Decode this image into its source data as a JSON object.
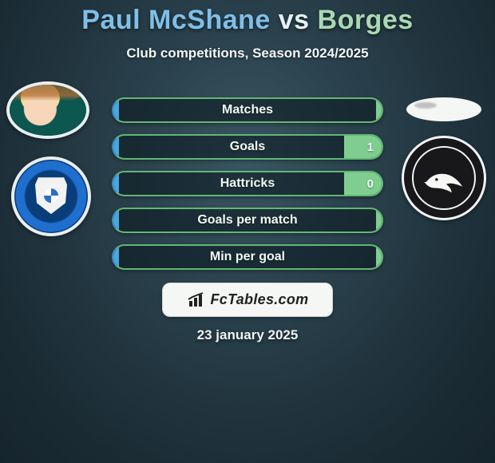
{
  "title": {
    "player1": "Paul McShane",
    "vs": "vs",
    "player2": "Borges",
    "p1_color": "#7fbfe8",
    "vs_color": "#e7f0f4",
    "p2_color": "#a9d9b3"
  },
  "subtitle": "Club competitions, Season 2024/2025",
  "colors": {
    "left": "#4aa6dd",
    "left_border": "#3a8ec0",
    "left_text": "#e6f5ff",
    "right": "#7fce8f",
    "right_border": "#61b873",
    "right_text": "#f1fbf3",
    "empty_bg": "rgba(10,22,30,0.55)"
  },
  "stats": [
    {
      "label": "Matches",
      "left_val": null,
      "right_val": null,
      "left_pct": 2,
      "right_pct": 2
    },
    {
      "label": "Goals",
      "left_val": null,
      "right_val": "1",
      "left_pct": 2,
      "right_pct": 14
    },
    {
      "label": "Hattricks",
      "left_val": null,
      "right_val": "0",
      "left_pct": 2,
      "right_pct": 14
    },
    {
      "label": "Goals per match",
      "left_val": null,
      "right_val": null,
      "left_pct": 2,
      "right_pct": 2
    },
    {
      "label": "Min per goal",
      "left_val": null,
      "right_val": null,
      "left_pct": 2,
      "right_pct": 2
    }
  ],
  "brand": "FcTables.com",
  "date": "23 january 2025"
}
